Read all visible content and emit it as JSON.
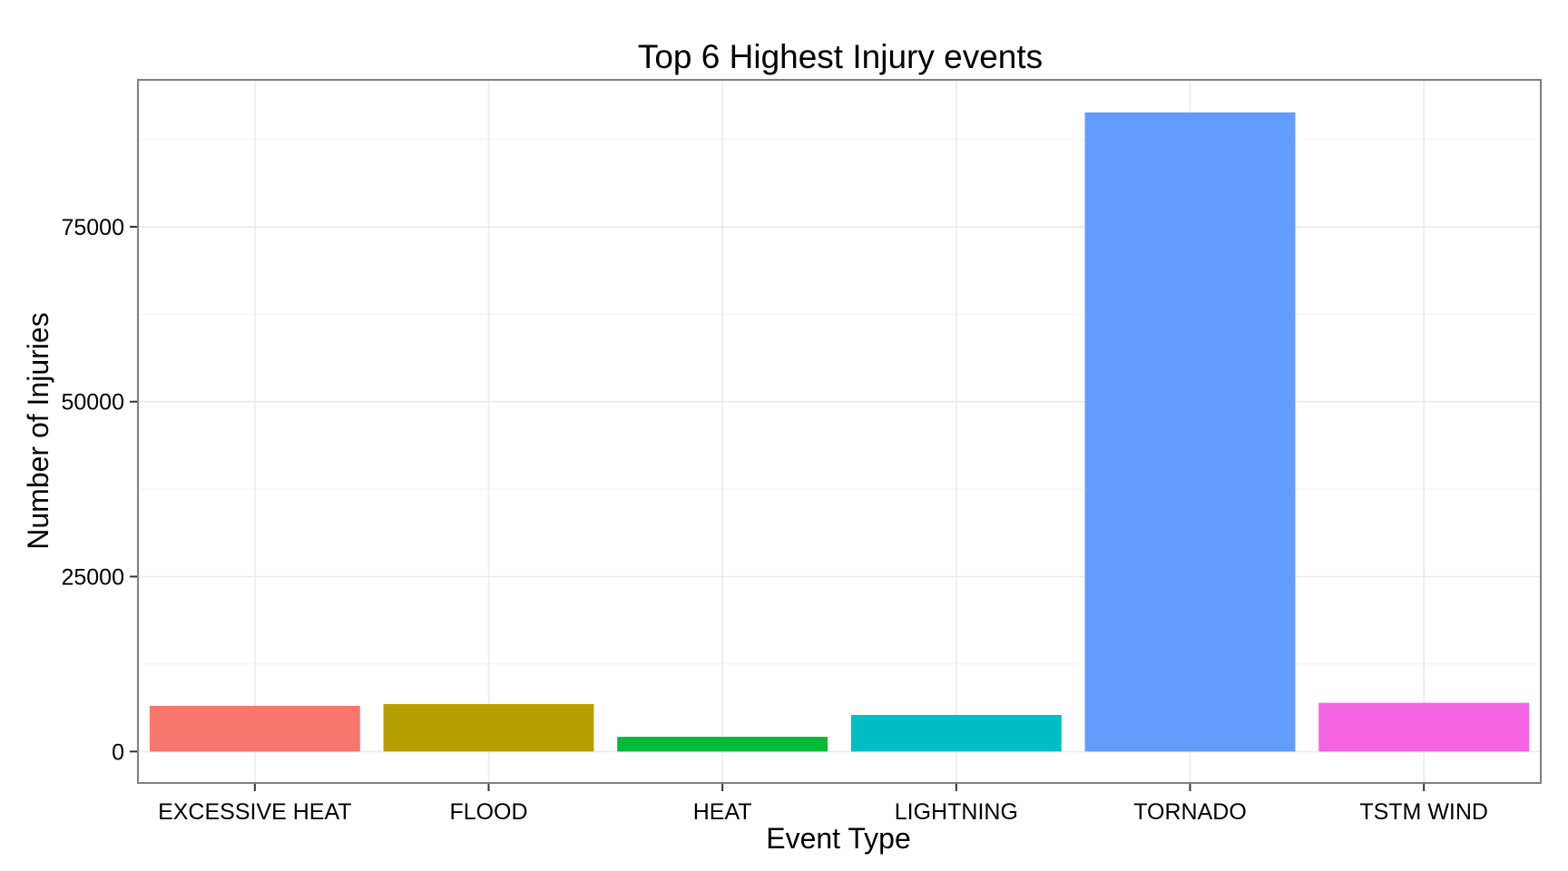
{
  "chart_data": {
    "type": "bar",
    "title": "Top 6 Highest Injury events",
    "xlabel": "Event Type",
    "ylabel": "Number of Injuries",
    "categories": [
      "EXCESSIVE HEAT",
      "FLOOD",
      "HEAT",
      "LIGHTNING",
      "TORNADO",
      "TSTM WIND"
    ],
    "values": [
      6525,
      6789,
      2100,
      5230,
      91346,
      6957
    ],
    "colors": [
      "#F8766D",
      "#B79F00",
      "#00BA38",
      "#00BFC4",
      "#619CFF",
      "#F564E3"
    ],
    "ylim": [
      -4500,
      96000
    ],
    "yticks": [
      0,
      25000,
      50000,
      75000
    ],
    "ytick_labels": [
      "0",
      "25000",
      "50000",
      "75000"
    ],
    "grid": true,
    "legend": "none"
  }
}
